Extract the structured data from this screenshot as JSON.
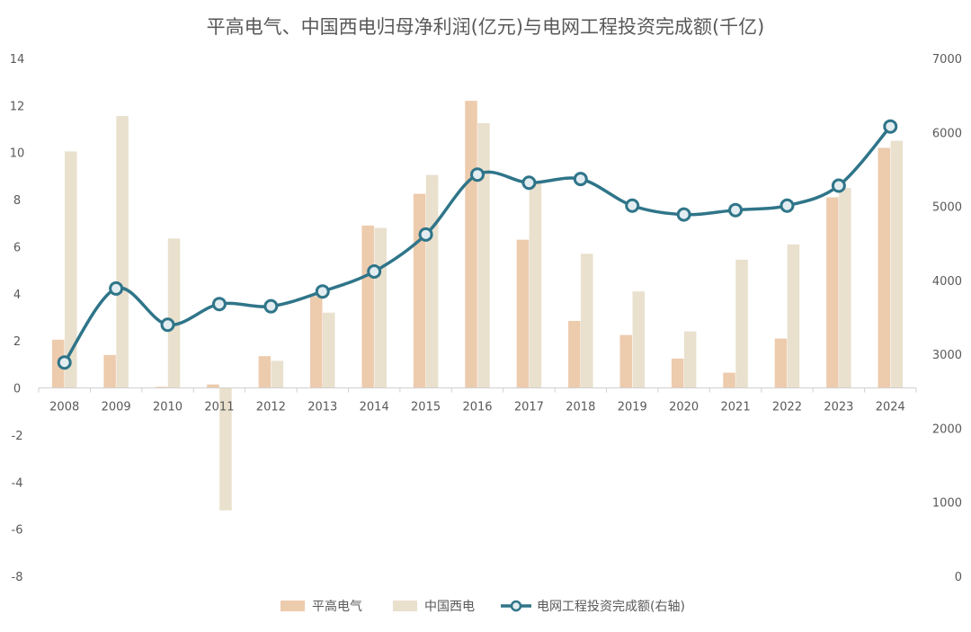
{
  "chart_data": {
    "type": "bar",
    "title": "平高电气、中国西电归母净利润(亿元)与电网工程投资完成额(千亿)",
    "categories": [
      "2008",
      "2009",
      "2010",
      "2011",
      "2012",
      "2013",
      "2014",
      "2015",
      "2016",
      "2017",
      "2018",
      "2019",
      "2020",
      "2021",
      "2022",
      "2023",
      "2024"
    ],
    "y_left": {
      "ylim": [
        -8,
        14
      ],
      "ticks": [
        "-8",
        "-6",
        "-4",
        "-2",
        "0",
        "2",
        "4",
        "6",
        "8",
        "10",
        "12",
        "14"
      ]
    },
    "y_right": {
      "ylim": [
        0,
        7000
      ],
      "ticks": [
        "0",
        "1000",
        "2000",
        "3000",
        "4000",
        "5000",
        "6000",
        "7000"
      ]
    },
    "grid": false,
    "legend_position": "bottom",
    "series": [
      {
        "name": "平高电气",
        "type": "bar",
        "axis": "left",
        "color": "#EDCBAD",
        "values": [
          2.05,
          1.4,
          0.05,
          0.15,
          1.35,
          3.9,
          6.9,
          8.25,
          12.2,
          6.3,
          2.85,
          2.25,
          1.25,
          0.65,
          2.1,
          8.1,
          10.2
        ]
      },
      {
        "name": "中国西电",
        "type": "bar",
        "axis": "left",
        "color": "#E9E0CD",
        "values": [
          10.05,
          11.55,
          6.35,
          -5.2,
          1.15,
          3.2,
          6.8,
          9.05,
          11.25,
          8.7,
          5.7,
          4.1,
          2.4,
          5.45,
          6.1,
          8.5,
          10.5
        ]
      },
      {
        "name": "电网工程投资完成额(右轴)",
        "type": "line",
        "axis": "right",
        "color": "#2F7589",
        "values": [
          2890,
          3890,
          3400,
          3680,
          3650,
          3850,
          4120,
          4620,
          5430,
          5320,
          5370,
          5010,
          4890,
          4950,
          5010,
          5280,
          6080
        ]
      }
    ]
  }
}
